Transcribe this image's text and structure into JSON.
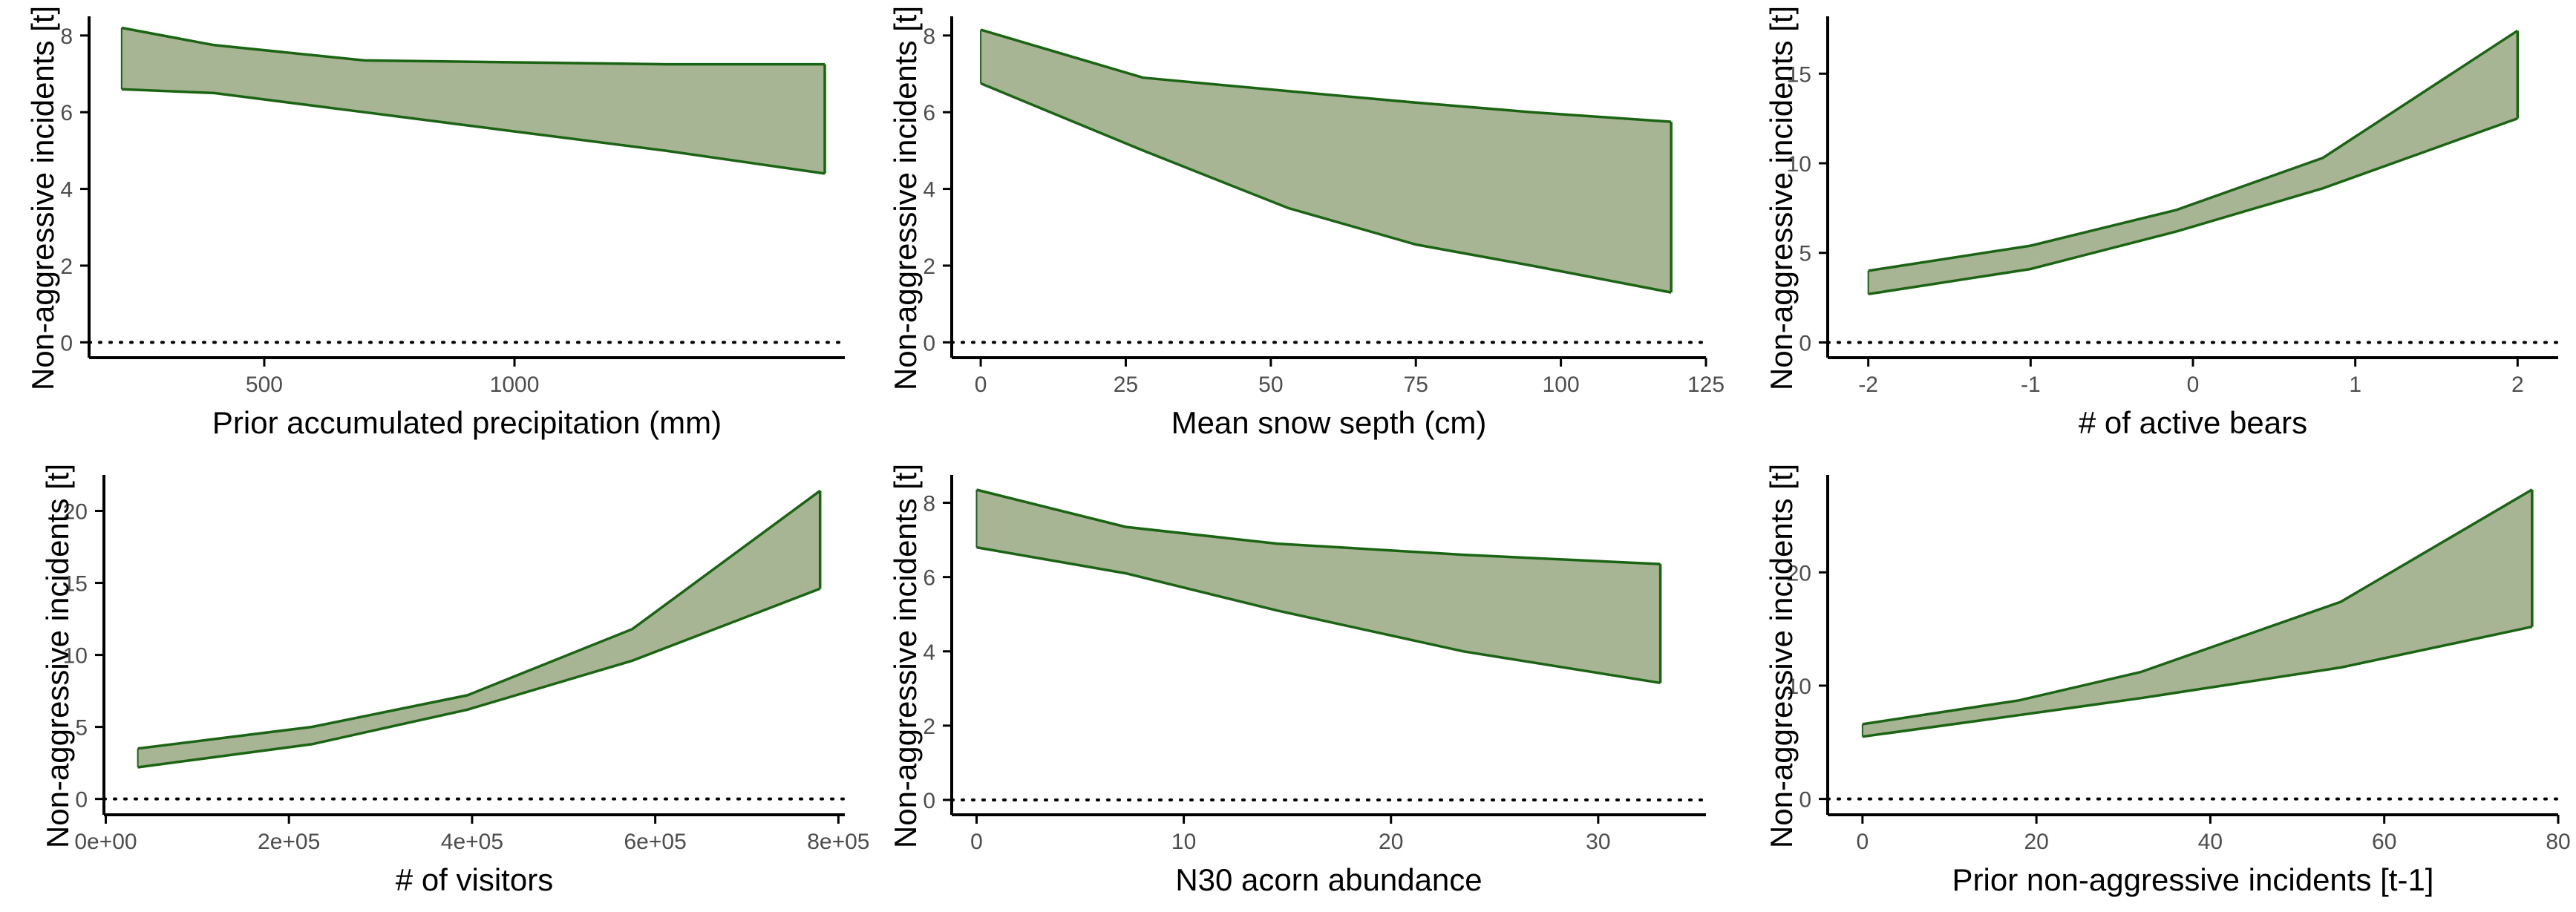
{
  "colors": {
    "line": "#1a6414",
    "fill": "#a8b595",
    "axis": "#000000",
    "zero": "#000000",
    "tick_text": "#4d4d4d"
  },
  "chart_data": [
    {
      "type": "area",
      "xlabel": "Prior accumulated precipitation (mm)",
      "ylabel": "Non-aggressive incidents [t]",
      "xlim": [
        150,
        1660
      ],
      "ylim": [
        -0.4,
        8.5
      ],
      "xticks": [
        500,
        1000
      ],
      "xtick_labels": [
        "500",
        "1000"
      ],
      "yticks": [
        0,
        2,
        4,
        6,
        8
      ],
      "ytick_labels": [
        "0",
        "2",
        "4",
        "6",
        "8"
      ],
      "x": [
        215,
        400,
        700,
        1000,
        1300,
        1620
      ],
      "upper": [
        8.2,
        7.75,
        7.35,
        7.3,
        7.25,
        7.25
      ],
      "lower": [
        6.6,
        6.5,
        6.0,
        5.5,
        5.0,
        4.4
      ],
      "zero_line": true
    },
    {
      "type": "area",
      "xlabel": "Mean snow septh (cm)",
      "ylabel": "Non-aggressive incidents [t]",
      "xlim": [
        -5,
        125
      ],
      "ylim": [
        -0.4,
        8.5
      ],
      "xticks": [
        0,
        25,
        50,
        75,
        100,
        125
      ],
      "xtick_labels": [
        "0",
        "25",
        "50",
        "75",
        "100",
        "125"
      ],
      "yticks": [
        0,
        2,
        4,
        6,
        8
      ],
      "ytick_labels": [
        "0",
        "2",
        "4",
        "6",
        "8"
      ],
      "x": [
        0,
        28,
        53,
        75,
        95,
        119
      ],
      "upper": [
        8.15,
        6.9,
        6.55,
        6.25,
        6.0,
        5.75
      ],
      "lower": [
        6.75,
        5.0,
        3.5,
        2.55,
        2.0,
        1.3
      ],
      "zero_line": true
    },
    {
      "type": "area",
      "xlabel": "# of active bears",
      "ylabel": "Non-aggressive incidents [t]",
      "xlim": [
        -2.25,
        2.25
      ],
      "ylim": [
        -0.85,
        18.2
      ],
      "xticks": [
        -2,
        -1,
        0,
        1,
        2
      ],
      "xtick_labels": [
        "-2",
        "-1",
        "0",
        "1",
        "2"
      ],
      "yticks": [
        0,
        5,
        10,
        15
      ],
      "ytick_labels": [
        "0",
        "5",
        "10",
        "15"
      ],
      "x": [
        -2,
        -1,
        -0.1,
        0.8,
        2
      ],
      "upper": [
        4.0,
        5.4,
        7.4,
        10.3,
        17.4
      ],
      "lower": [
        2.7,
        4.1,
        6.2,
        8.6,
        12.5
      ],
      "zero_line": true
    },
    {
      "type": "area",
      "xlabel": "# of visitors",
      "ylabel": "Non-aggressive incidents [t]",
      "xlim": [
        -2000,
        807000
      ],
      "ylim": [
        -1.1,
        22.5
      ],
      "xticks": [
        0,
        200000,
        400000,
        600000,
        800000
      ],
      "xtick_labels": [
        "0e+00",
        "2e+05",
        "4e+05",
        "6e+05",
        "8e+05"
      ],
      "yticks": [
        0,
        5,
        10,
        15,
        20
      ],
      "ytick_labels": [
        "0",
        "5",
        "10",
        "15",
        "20"
      ],
      "x": [
        35000,
        225000,
        395000,
        575000,
        780000
      ],
      "upper": [
        3.5,
        5.0,
        7.2,
        11.8,
        21.4
      ],
      "lower": [
        2.2,
        3.8,
        6.2,
        9.6,
        14.6
      ],
      "zero_line": true
    },
    {
      "type": "area",
      "xlabel": "N30 acorn abundance",
      "ylabel": "Non-aggressive incidents [t]",
      "xlim": [
        -1.2,
        35.2
      ],
      "ylim": [
        -0.4,
        8.75
      ],
      "xticks": [
        0,
        10,
        20,
        30
      ],
      "xtick_labels": [
        "0",
        "10",
        "20",
        "30"
      ],
      "yticks": [
        0,
        2,
        4,
        6,
        8
      ],
      "ytick_labels": [
        "0",
        "2",
        "4",
        "6",
        "8"
      ],
      "x": [
        0,
        7.2,
        14.5,
        23.5,
        33
      ],
      "upper": [
        8.35,
        7.35,
        6.9,
        6.6,
        6.35
      ],
      "lower": [
        6.8,
        6.1,
        5.1,
        4.0,
        3.15
      ],
      "zero_line": true
    },
    {
      "type": "area",
      "xlabel": "Prior non-aggressive incidents [t-1]",
      "ylabel": "Non-aggressive incidents [t]",
      "xlim": [
        -4,
        80
      ],
      "ylim": [
        -1.4,
        28.6
      ],
      "xticks": [
        0,
        20,
        40,
        60,
        80
      ],
      "xtick_labels": [
        "0",
        "20",
        "40",
        "60",
        "80"
      ],
      "yticks": [
        0,
        10,
        20
      ],
      "ytick_labels": [
        "0",
        "10",
        "20"
      ],
      "x": [
        0,
        18,
        32,
        55,
        77
      ],
      "upper": [
        6.6,
        8.7,
        11.2,
        17.4,
        27.3
      ],
      "lower": [
        5.5,
        7.4,
        8.9,
        11.6,
        15.2
      ],
      "zero_line": true
    }
  ]
}
